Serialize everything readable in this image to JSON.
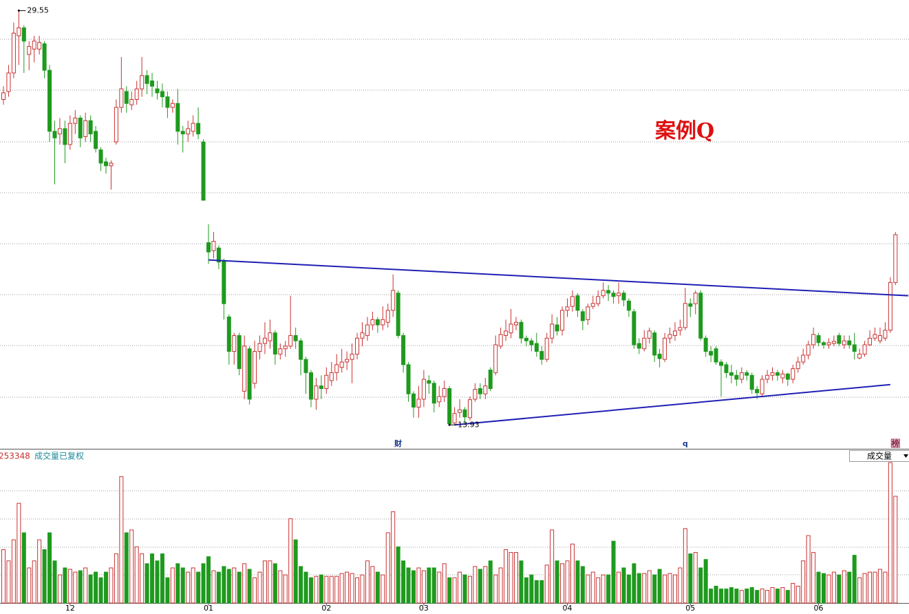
{
  "chart_data": {
    "type": "candlestick",
    "title": "案例Q",
    "volume_header": {
      "value_text": "253348",
      "label": "成交量已复权",
      "selector": "成交量"
    },
    "ylim": [
      13.6,
      29.95
    ],
    "volume_ylim": [
      0,
      100
    ],
    "up_color": "#c8302f",
    "down_color": "#1e9a1e",
    "trend_color": "#1f1fb4",
    "grid": true,
    "candles": [
      [
        26.2,
        26.7,
        26.0,
        26.45
      ],
      [
        26.5,
        27.5,
        26.3,
        27.2
      ],
      [
        27.2,
        29.1,
        27.0,
        28.7
      ],
      [
        28.6,
        29.55,
        27.5,
        28.9
      ],
      [
        28.9,
        29.0,
        27.2,
        28.4
      ],
      [
        27.9,
        28.4,
        27.3,
        28.2
      ],
      [
        28.1,
        28.6,
        27.6,
        28.4
      ],
      [
        28.1,
        28.6,
        27.9,
        28.35
      ],
      [
        28.3,
        28.4,
        27.0,
        27.3
      ],
      [
        27.3,
        27.5,
        24.6,
        25.0
      ],
      [
        25.0,
        25.4,
        23.0,
        24.75
      ],
      [
        24.9,
        25.5,
        24.5,
        25.1
      ],
      [
        25.1,
        25.4,
        23.8,
        24.5
      ],
      [
        24.5,
        25.6,
        24.3,
        25.3
      ],
      [
        25.3,
        25.8,
        24.9,
        25.5
      ],
      [
        25.5,
        25.6,
        24.4,
        24.75
      ],
      [
        24.8,
        25.7,
        24.6,
        25.4
      ],
      [
        25.4,
        25.6,
        24.6,
        24.9
      ],
      [
        25.0,
        25.2,
        24.2,
        24.35
      ],
      [
        24.3,
        24.4,
        23.5,
        23.8
      ],
      [
        23.85,
        24.0,
        23.4,
        23.7
      ],
      [
        23.7,
        23.9,
        22.8,
        23.8
      ],
      [
        24.6,
        26.2,
        24.5,
        25.9
      ],
      [
        25.9,
        27.8,
        25.7,
        26.6
      ],
      [
        26.5,
        26.7,
        25.7,
        26.05
      ],
      [
        26.0,
        26.5,
        25.8,
        26.2
      ],
      [
        26.2,
        26.9,
        26.0,
        26.6
      ],
      [
        26.6,
        27.8,
        26.3,
        27.1
      ],
      [
        27.1,
        27.3,
        26.4,
        26.8
      ],
      [
        26.9,
        27.2,
        26.3,
        26.7
      ],
      [
        26.6,
        26.9,
        26.2,
        26.45
      ],
      [
        26.5,
        26.8,
        25.9,
        26.3
      ],
      [
        26.3,
        26.5,
        25.5,
        25.9
      ],
      [
        25.9,
        26.2,
        25.7,
        26.05
      ],
      [
        26.05,
        26.6,
        24.5,
        25.0
      ],
      [
        25.0,
        25.2,
        24.2,
        24.9
      ],
      [
        24.9,
        25.4,
        24.6,
        25.1
      ],
      [
        25.0,
        25.6,
        24.8,
        25.3
      ],
      [
        25.3,
        25.9,
        24.7,
        24.9
      ],
      [
        24.6,
        24.7,
        22.4,
        22.4
      ],
      [
        20.8,
        21.5,
        20.0,
        20.45
      ],
      [
        20.5,
        21.2,
        20.2,
        20.85
      ],
      [
        20.6,
        20.7,
        19.8,
        20.07
      ],
      [
        20.1,
        20.2,
        17.9,
        18.5
      ],
      [
        18.0,
        18.1,
        16.2,
        16.7
      ],
      [
        16.7,
        17.4,
        16.2,
        17.3
      ],
      [
        17.3,
        17.4,
        15.8,
        16.05
      ],
      [
        15.2,
        17.3,
        14.9,
        16.9
      ],
      [
        16.8,
        16.9,
        14.7,
        14.9
      ],
      [
        15.5,
        17.1,
        15.3,
        16.7
      ],
      [
        16.7,
        17.3,
        16.4,
        17.0
      ],
      [
        17.0,
        17.8,
        16.6,
        17.2
      ],
      [
        17.1,
        17.9,
        16.8,
        17.4
      ],
      [
        17.4,
        17.5,
        16.2,
        16.6
      ],
      [
        16.6,
        17.0,
        16.4,
        16.8
      ],
      [
        16.8,
        17.1,
        16.5,
        16.9
      ],
      [
        16.9,
        18.8,
        16.8,
        17.3
      ],
      [
        17.3,
        17.6,
        16.8,
        17.1
      ],
      [
        17.1,
        17.2,
        15.8,
        16.4
      ],
      [
        16.4,
        16.5,
        15.1,
        15.9
      ],
      [
        15.9,
        16.0,
        14.6,
        14.9
      ],
      [
        14.9,
        15.7,
        14.5,
        15.4
      ],
      [
        15.4,
        15.8,
        14.9,
        15.3
      ],
      [
        15.3,
        16.1,
        15.1,
        15.8
      ],
      [
        15.6,
        16.3,
        15.4,
        15.9
      ],
      [
        15.9,
        16.6,
        15.6,
        16.2
      ],
      [
        16.1,
        16.8,
        15.9,
        16.3
      ],
      [
        16.3,
        16.7,
        16.0,
        16.4
      ],
      [
        16.4,
        17.0,
        15.5,
        16.6
      ],
      [
        16.6,
        17.4,
        16.4,
        17.2
      ],
      [
        17.2,
        17.8,
        16.9,
        17.4
      ],
      [
        17.3,
        18.0,
        17.1,
        17.7
      ],
      [
        17.7,
        18.2,
        17.5,
        17.9
      ],
      [
        17.9,
        18.0,
        17.4,
        17.7
      ],
      [
        17.7,
        18.4,
        17.5,
        17.9
      ],
      [
        17.8,
        18.5,
        17.6,
        18.25
      ],
      [
        18.25,
        19.6,
        18.0,
        19.0
      ],
      [
        18.9,
        19.0,
        17.2,
        17.3
      ],
      [
        17.3,
        17.4,
        15.9,
        16.2
      ],
      [
        16.2,
        16.3,
        14.8,
        15.1
      ],
      [
        15.1,
        15.2,
        14.2,
        14.6
      ],
      [
        14.6,
        15.4,
        14.2,
        14.9
      ],
      [
        14.9,
        16.0,
        14.6,
        15.65
      ],
      [
        15.6,
        15.8,
        15.1,
        15.5
      ],
      [
        15.5,
        15.6,
        14.4,
        14.75
      ],
      [
        14.8,
        15.4,
        14.6,
        15.0
      ],
      [
        15.0,
        15.6,
        14.8,
        15.3
      ],
      [
        15.3,
        15.4,
        13.93,
        13.97
      ],
      [
        14.0,
        14.6,
        13.95,
        14.36
      ],
      [
        14.4,
        14.9,
        14.2,
        14.5
      ],
      [
        14.5,
        14.6,
        14.0,
        14.23
      ],
      [
        14.2,
        15.0,
        14.1,
        14.88
      ],
      [
        14.9,
        15.5,
        14.8,
        15.27
      ],
      [
        15.3,
        15.5,
        14.9,
        15.1
      ],
      [
        15.1,
        15.7,
        14.9,
        15.4
      ],
      [
        16.0,
        16.1,
        15.2,
        15.3
      ],
      [
        15.9,
        17.3,
        15.8,
        16.95
      ],
      [
        16.9,
        17.6,
        16.8,
        17.34
      ],
      [
        17.3,
        17.9,
        17.1,
        17.47
      ],
      [
        17.4,
        18.3,
        17.2,
        17.73
      ],
      [
        17.7,
        18.0,
        17.5,
        17.8
      ],
      [
        17.8,
        17.9,
        17.0,
        17.2
      ],
      [
        17.2,
        17.3,
        16.9,
        17.1
      ],
      [
        17.1,
        17.2,
        16.7,
        16.95
      ],
      [
        17.0,
        17.4,
        16.5,
        16.7
      ],
      [
        16.7,
        16.9,
        16.2,
        16.4
      ],
      [
        16.4,
        17.4,
        16.3,
        17.2
      ],
      [
        17.2,
        18.1,
        17.0,
        17.73
      ],
      [
        17.7,
        18.0,
        17.3,
        17.47
      ],
      [
        17.5,
        18.4,
        17.3,
        18.25
      ],
      [
        18.25,
        18.7,
        18.0,
        18.38
      ],
      [
        18.4,
        19.0,
        18.2,
        18.77
      ],
      [
        18.8,
        18.9,
        18.0,
        18.25
      ],
      [
        18.2,
        18.3,
        17.5,
        17.86
      ],
      [
        17.9,
        18.5,
        17.7,
        18.38
      ],
      [
        18.4,
        18.8,
        18.3,
        18.51
      ],
      [
        18.5,
        19.0,
        18.4,
        18.77
      ],
      [
        18.8,
        19.3,
        18.7,
        19.0
      ],
      [
        19.0,
        19.2,
        18.6,
        18.9
      ],
      [
        18.9,
        19.0,
        18.5,
        18.77
      ],
      [
        18.8,
        19.3,
        18.5,
        18.9
      ],
      [
        18.9,
        19.0,
        18.4,
        18.64
      ],
      [
        18.6,
        18.7,
        18.0,
        18.25
      ],
      [
        18.2,
        18.3,
        16.8,
        16.95
      ],
      [
        17.0,
        17.2,
        16.6,
        16.82
      ],
      [
        16.8,
        17.5,
        16.7,
        17.2
      ],
      [
        17.2,
        17.6,
        17.0,
        17.47
      ],
      [
        17.4,
        17.5,
        16.3,
        16.56
      ],
      [
        16.6,
        16.8,
        16.1,
        16.43
      ],
      [
        16.4,
        17.4,
        16.3,
        17.2
      ],
      [
        17.2,
        17.6,
        17.0,
        17.34
      ],
      [
        17.3,
        17.8,
        17.1,
        17.47
      ],
      [
        17.5,
        17.9,
        17.3,
        17.6
      ],
      [
        17.6,
        19.1,
        17.5,
        18.51
      ],
      [
        18.5,
        18.7,
        18.0,
        18.4
      ],
      [
        18.5,
        19.0,
        18.1,
        18.9
      ],
      [
        18.9,
        19.0,
        17.1,
        17.2
      ],
      [
        17.2,
        17.3,
        16.5,
        16.7
      ],
      [
        16.7,
        16.9,
        16.3,
        16.56
      ],
      [
        16.8,
        16.9,
        16.2,
        16.3
      ],
      [
        16.3,
        16.4,
        15.0,
        16.17
      ],
      [
        16.2,
        16.3,
        15.7,
        15.9
      ],
      [
        15.9,
        16.2,
        15.5,
        15.8
      ],
      [
        15.8,
        16.0,
        15.4,
        15.65
      ],
      [
        15.65,
        16.1,
        15.5,
        15.9
      ],
      [
        15.9,
        16.0,
        15.6,
        15.8
      ],
      [
        15.8,
        15.9,
        15.1,
        15.27
      ],
      [
        15.27,
        15.4,
        14.9,
        15.14
      ],
      [
        15.1,
        15.8,
        15.0,
        15.65
      ],
      [
        15.65,
        16.0,
        15.5,
        15.8
      ],
      [
        15.8,
        16.1,
        15.6,
        15.9
      ],
      [
        15.9,
        16.0,
        15.6,
        15.8
      ],
      [
        15.7,
        16.0,
        15.5,
        15.85
      ],
      [
        15.85,
        15.9,
        15.4,
        15.65
      ],
      [
        15.65,
        16.2,
        15.5,
        16.05
      ],
      [
        16.05,
        16.5,
        15.9,
        16.3
      ],
      [
        16.3,
        16.8,
        16.2,
        16.56
      ],
      [
        16.56,
        17.1,
        16.4,
        16.95
      ],
      [
        16.95,
        17.6,
        16.8,
        17.34
      ],
      [
        17.3,
        17.4,
        16.9,
        17.03
      ],
      [
        17.03,
        17.1,
        16.8,
        16.95
      ],
      [
        16.95,
        17.2,
        16.8,
        17.03
      ],
      [
        17.0,
        17.3,
        16.9,
        17.08
      ],
      [
        17.3,
        17.4,
        16.9,
        17.0
      ],
      [
        16.95,
        17.3,
        16.8,
        17.1
      ],
      [
        17.1,
        17.3,
        16.8,
        16.95
      ],
      [
        16.95,
        17.4,
        16.4,
        16.7
      ],
      [
        16.45,
        16.8,
        16.4,
        16.6
      ],
      [
        16.6,
        17.1,
        16.5,
        16.95
      ],
      [
        16.95,
        17.5,
        16.9,
        17.2
      ],
      [
        17.2,
        17.6,
        17.1,
        17.34
      ],
      [
        17.1,
        17.6,
        17.0,
        17.3
      ],
      [
        17.2,
        17.8,
        17.1,
        17.5
      ],
      [
        17.5,
        19.5,
        17.4,
        19.3
      ],
      [
        19.3,
        21.2,
        19.2,
        21.1
      ]
    ],
    "volume": [
      38,
      30,
      45,
      71,
      50,
      25,
      30,
      45,
      38,
      50,
      30,
      20,
      25,
      24,
      22,
      23,
      25,
      20,
      22,
      18,
      22,
      25,
      35,
      90,
      50,
      52,
      40,
      35,
      28,
      35,
      30,
      35,
      18,
      25,
      28,
      25,
      22,
      25,
      22,
      28,
      33,
      23,
      22,
      26,
      24,
      25,
      22,
      28,
      24,
      18,
      22,
      30,
      30,
      28,
      23,
      20,
      60,
      45,
      26,
      22,
      18,
      19,
      20,
      19,
      19,
      19,
      21,
      22,
      21,
      18,
      20,
      30,
      26,
      22,
      20,
      50,
      65,
      40,
      30,
      25,
      23,
      25,
      23,
      25,
      25,
      22,
      28,
      18,
      18,
      22,
      20,
      19,
      26,
      24,
      26,
      30,
      20,
      25,
      38,
      36,
      36,
      30,
      18,
      20,
      16,
      16,
      27,
      52,
      30,
      28,
      30,
      42,
      30,
      26,
      20,
      22,
      18,
      20,
      20,
      44,
      22,
      25,
      20,
      28,
      21,
      21,
      23,
      20,
      24,
      20,
      21,
      20,
      25,
      53,
      35,
      36,
      25,
      31,
      10,
      12,
      10,
      10,
      11,
      10,
      9,
      10,
      11,
      9,
      10,
      9,
      11,
      10,
      11,
      9,
      14,
      12,
      30,
      48,
      36,
      22,
      21,
      20,
      22,
      20,
      23,
      22,
      34,
      18,
      21,
      22,
      22,
      24,
      22,
      100,
      76
    ],
    "month_labels": [
      {
        "index": 13,
        "label": "12"
      },
      {
        "index": 40,
        "label": "01"
      },
      {
        "index": 63,
        "label": "02"
      },
      {
        "index": 82,
        "label": "03"
      },
      {
        "index": 110,
        "label": "04"
      },
      {
        "index": 134,
        "label": "05"
      },
      {
        "index": 159,
        "label": "06"
      }
    ],
    "annotations": [
      {
        "index": 3,
        "value": 29.55
      },
      {
        "index": 87,
        "value": 13.93
      }
    ],
    "markers": [
      {
        "index": 77,
        "label": "财"
      },
      {
        "index": 133,
        "label": "q"
      },
      {
        "index": 174,
        "label": "榜"
      }
    ],
    "trendlines": [
      {
        "from": [
          40,
          20.15
        ],
        "to": [
          176.5,
          18.8
        ]
      },
      {
        "from": [
          88,
          13.93
        ],
        "to": [
          173,
          15.45
        ]
      }
    ]
  }
}
